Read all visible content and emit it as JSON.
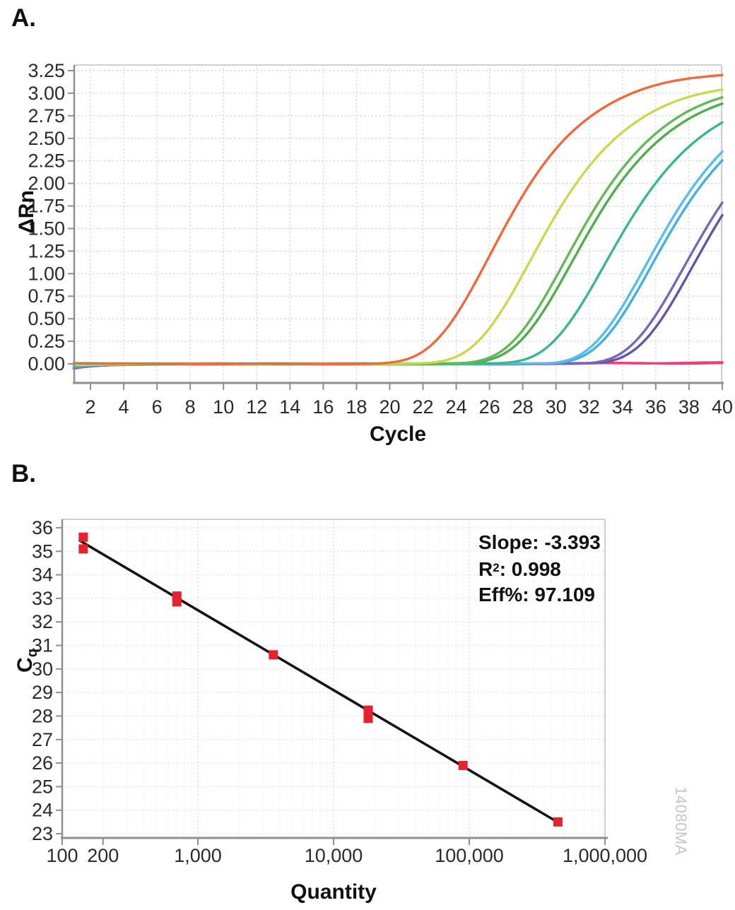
{
  "watermark": {
    "text": "14080MA",
    "color": "#C6C6C6"
  },
  "chart_data": [
    {
      "panel_label": "A.",
      "type": "line",
      "xlabel": "Cycle",
      "ylabel": "ΔRn",
      "x_ticks": [
        2,
        4,
        6,
        8,
        10,
        12,
        14,
        16,
        18,
        20,
        22,
        24,
        26,
        28,
        30,
        32,
        34,
        36,
        38,
        40
      ],
      "x_range": [
        1,
        40
      ],
      "y_tick_labels": [
        "0.00",
        "0.25",
        "0.50",
        "0.75",
        "1.00",
        "1.25",
        "1.50",
        "1.75",
        "2.00",
        "2.25",
        "2.50",
        "2.75",
        "3.00",
        "3.25"
      ],
      "y_range_drawn": [
        -0.2,
        3.32
      ],
      "grid": "dotted",
      "legend": "none",
      "series": [
        {
          "name": "ntc-magenta",
          "color": "#E7265E",
          "cq": null,
          "drn_at_cycle40": 0.0,
          "model": {
            "plateau": 0.012,
            "midpoint": 30,
            "steepness": 0.12,
            "start_offset": -0.055
          }
        },
        {
          "name": "ntc-pink",
          "color": "#F43E7D",
          "cq": null,
          "drn_at_cycle40": 0.01,
          "model": {
            "plateau": 0.02,
            "midpoint": 34,
            "steepness": 0.15,
            "start_offset": -0.05
          }
        },
        {
          "name": "purple-2",
          "color": "#6157A6",
          "cq": 35.6,
          "drn_at_cycle40": 1.66,
          "model": {
            "plateau": 3.0,
            "midpoint": 38.3,
            "steepness": 0.3,
            "start_offset": -0.02
          }
        },
        {
          "name": "purple-1",
          "color": "#7569B5",
          "cq": 35.1,
          "drn_at_cycle40": 1.8,
          "model": {
            "plateau": 3.0,
            "midpoint": 37.8,
            "steepness": 0.3,
            "start_offset": -0.045
          }
        },
        {
          "name": "blue-2",
          "color": "#41B0E6",
          "cq": 33.1,
          "drn_at_cycle40": 2.24,
          "model": {
            "plateau": 3.0,
            "midpoint": 35.8,
            "steepness": 0.3,
            "start_offset": -0.03
          }
        },
        {
          "name": "blue-1",
          "color": "#59BDEB",
          "cq": 32.85,
          "drn_at_cycle40": 2.33,
          "model": {
            "plateau": 3.05,
            "midpoint": 35.5,
            "steepness": 0.3,
            "start_offset": -0.005
          }
        },
        {
          "name": "teal",
          "color": "#3CB78B",
          "cq": 30.6,
          "drn_at_cycle40": 2.68,
          "model": {
            "plateau": 3.05,
            "midpoint": 33.0,
            "steepness": 0.29,
            "start_offset": 0.005
          }
        },
        {
          "name": "green-2",
          "color": "#4EAE4B",
          "cq": 28.25,
          "drn_at_cycle40": 2.88,
          "model": {
            "plateau": 3.1,
            "midpoint": 31.0,
            "steepness": 0.29,
            "start_offset": -0.02
          }
        },
        {
          "name": "green-1",
          "color": "#63B956",
          "cq": 27.9,
          "drn_at_cycle40": 2.95,
          "model": {
            "plateau": 3.15,
            "midpoint": 30.6,
            "steepness": 0.29,
            "start_offset": 0
          }
        },
        {
          "name": "yellow-green",
          "color": "#CBD84E",
          "cq": 25.9,
          "drn_at_cycle40": 3.03,
          "model": {
            "plateau": 3.15,
            "midpoint": 28.5,
            "steepness": 0.29,
            "start_offset": -0.01
          }
        },
        {
          "name": "orange",
          "color": "#F0683C",
          "cq": 23.5,
          "drn_at_cycle40": 3.17,
          "model": {
            "plateau": 3.26,
            "midpoint": 26.0,
            "steepness": 0.29,
            "start_offset": 0.012
          }
        }
      ]
    },
    {
      "panel_label": "B.",
      "type": "scatter",
      "xlabel": "Quantity",
      "ylabel": "Cq",
      "ylabel_base": "C",
      "ylabel_sub": "q",
      "x_scale": "log",
      "x_ticks": [
        {
          "value": 100,
          "label": "100"
        },
        {
          "value": 200,
          "label": "200"
        },
        {
          "value": 1000,
          "label": "1,000"
        },
        {
          "value": 10000,
          "label": "10,000"
        },
        {
          "value": 100000,
          "label": "100,000"
        },
        {
          "value": 1000000,
          "label": "1,000,000"
        }
      ],
      "x_range": [
        100,
        1000000
      ],
      "y_ticks": [
        23,
        24,
        25,
        26,
        27,
        28,
        29,
        30,
        31,
        32,
        33,
        34,
        35,
        36
      ],
      "y_range_drawn": [
        22.85,
        36.36
      ],
      "grid": "dotted",
      "points": [
        {
          "quantity": 143,
          "cq": 35.6
        },
        {
          "quantity": 143,
          "cq": 35.1
        },
        {
          "quantity": 700,
          "cq": 33.1
        },
        {
          "quantity": 700,
          "cq": 32.85
        },
        {
          "quantity": 3600,
          "cq": 30.6
        },
        {
          "quantity": 18000,
          "cq": 28.25
        },
        {
          "quantity": 18000,
          "cq": 27.9
        },
        {
          "quantity": 90000,
          "cq": 25.9
        },
        {
          "quantity": 450000,
          "cq": 23.5
        }
      ],
      "point_color": "#E8212E",
      "fit_line": {
        "color": "#141414",
        "from": {
          "quantity": 135,
          "cq": 35.45
        },
        "to": {
          "quantity": 470000,
          "cq": 23.42
        }
      },
      "stats": {
        "slope": "Slope: -3.393",
        "r2_base": "R",
        "r2_sup": "2",
        "r2_rest": ": 0.998",
        "eff": "Eff%: 97.109"
      }
    }
  ]
}
